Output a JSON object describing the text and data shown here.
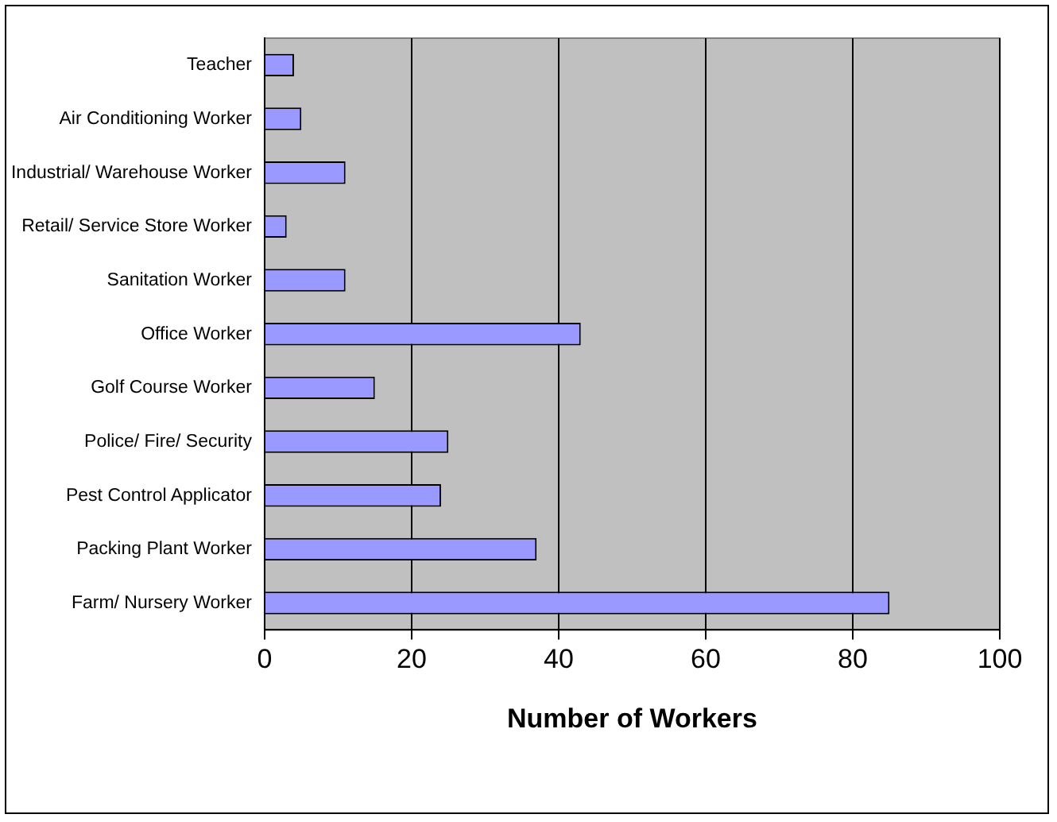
{
  "chart_data": {
    "type": "bar",
    "orientation": "horizontal",
    "xlabel": "Number of Workers",
    "categories": [
      "Teacher",
      "Air Conditioning Worker",
      "Industrial/ Warehouse Worker",
      "Retail/ Service Store Worker",
      "Sanitation Worker",
      "Office Worker",
      "Golf Course Worker",
      "Police/ Fire/ Security",
      "Pest Control Applicator",
      "Packing Plant Worker",
      "Farm/ Nursery Worker"
    ],
    "values": [
      4,
      5,
      11,
      3,
      11,
      43,
      15,
      25,
      24,
      37,
      85
    ],
    "color": "#9999ff",
    "xlim": [
      0,
      100
    ],
    "xticks": [
      0,
      20,
      40,
      60,
      80,
      100
    ],
    "grid": "x",
    "legend": false
  }
}
